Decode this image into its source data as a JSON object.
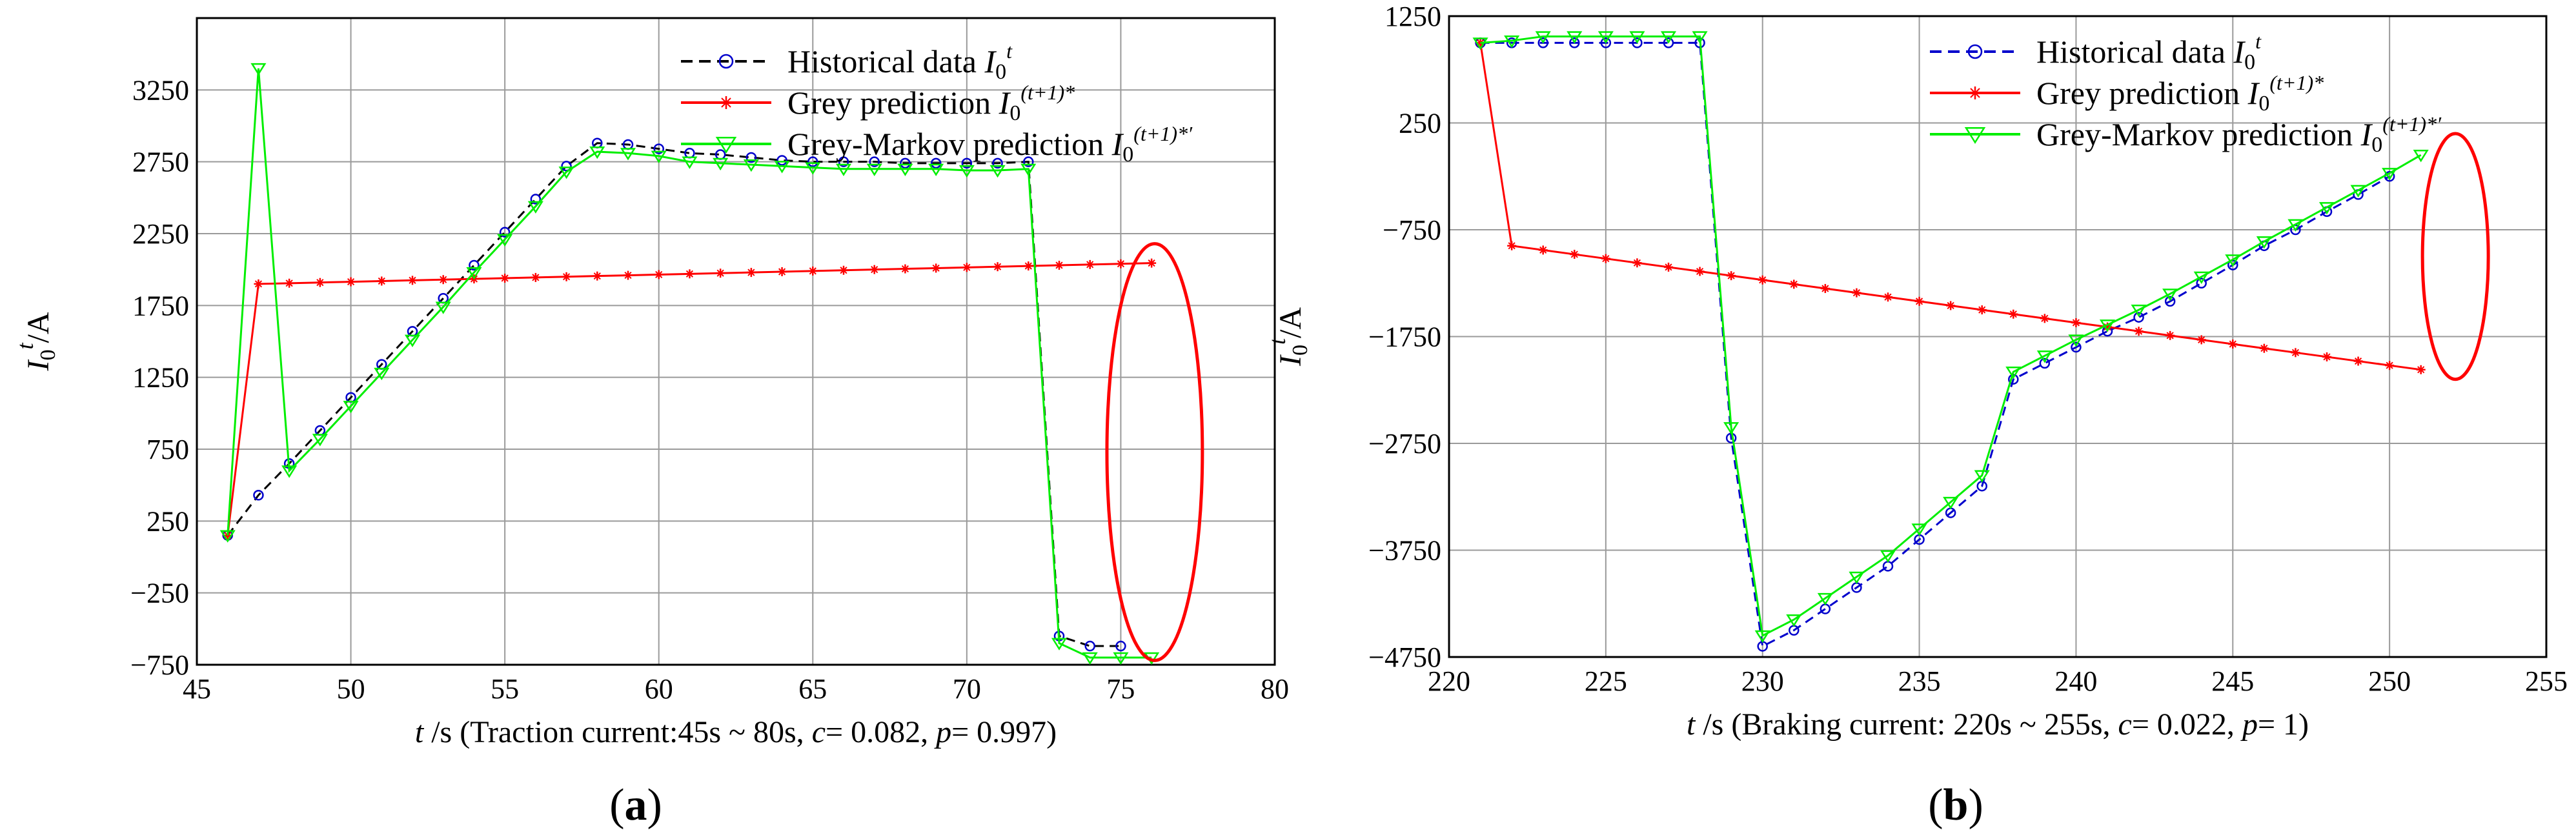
{
  "chart_data": [
    {
      "type": "line",
      "panel_label": "(a)",
      "panel_letter": "a",
      "xlabel": {
        "var": "t",
        "unit": " /s  (Traction current:45s ~ 80s, ",
        "c": "c",
        "c_val": "= 0.082, ",
        "p": "p",
        "p_val": "= 0.997)"
      },
      "ylabel": {
        "base": "I",
        "sub": "0",
        "sup": "t",
        "unit": "/A"
      },
      "xlim": [
        45,
        80
      ],
      "ylim": [
        -750,
        3750
      ],
      "x_ticks": [
        45,
        50,
        55,
        60,
        65,
        70,
        75,
        80
      ],
      "x_tick_labels": [
        "45",
        "50",
        "55",
        "60",
        "65",
        "70",
        "75",
        "80"
      ],
      "y_ticks": [
        -750,
        -250,
        250,
        750,
        1250,
        1750,
        2250,
        2750,
        3250
      ],
      "y_tick_labels": [
        "−750",
        "−250",
        "250",
        "750",
        "1250",
        "1750",
        "2250",
        "2750",
        "3250"
      ],
      "grid": true,
      "legend_location": "top-right",
      "series": [
        {
          "name": "Historical data",
          "symbol": "I",
          "sub": "0",
          "sup": "t",
          "color": "#000000",
          "marker_color": "#0000cc",
          "marker": "circle",
          "dash": true,
          "x": [
            46,
            47,
            48,
            49,
            50,
            51,
            52,
            53,
            54,
            55,
            56,
            57,
            58,
            59,
            60,
            61,
            62,
            63,
            64,
            65,
            66,
            67,
            68,
            69,
            70,
            71,
            72,
            73,
            74,
            75
          ],
          "y": [
            150,
            430,
            650,
            880,
            1110,
            1340,
            1570,
            1800,
            2030,
            2260,
            2490,
            2720,
            2880,
            2870,
            2840,
            2810,
            2800,
            2780,
            2760,
            2750,
            2750,
            2750,
            2740,
            2740,
            2740,
            2740,
            2750,
            -550,
            -620,
            -620
          ]
        },
        {
          "name": "Grey prediction",
          "symbol": "I",
          "sub": "0",
          "sup": "(t+1)*",
          "color": "#ff0000",
          "marker_color": "#ff0000",
          "marker": "star",
          "dash": false,
          "x": [
            46,
            47,
            48,
            49,
            50,
            51,
            52,
            53,
            54,
            55,
            56,
            57,
            58,
            59,
            60,
            61,
            62,
            63,
            64,
            65,
            66,
            67,
            68,
            69,
            70,
            71,
            72,
            73,
            74,
            75,
            76
          ],
          "y": [
            150,
            1900,
            1905,
            1910,
            1915,
            1920,
            1925,
            1930,
            1935,
            1940,
            1945,
            1950,
            1955,
            1960,
            1965,
            1970,
            1975,
            1980,
            1985,
            1990,
            1995,
            2000,
            2005,
            2010,
            2015,
            2020,
            2025,
            2030,
            2035,
            2040,
            2045
          ]
        },
        {
          "name": "Grey-Markov prediction",
          "symbol": "I",
          "sub": "0",
          "sup": "(t+1)*′",
          "color": "#00ee00",
          "marker_color": "#00ee00",
          "marker": "triangle",
          "dash": false,
          "x": [
            46,
            47,
            48,
            49,
            50,
            51,
            52,
            53,
            54,
            55,
            56,
            57,
            58,
            59,
            60,
            61,
            62,
            63,
            64,
            65,
            66,
            67,
            68,
            69,
            70,
            71,
            72,
            73,
            74,
            75,
            76
          ],
          "y": [
            150,
            3400,
            600,
            820,
            1050,
            1280,
            1510,
            1740,
            1980,
            2210,
            2440,
            2680,
            2820,
            2810,
            2790,
            2750,
            2740,
            2730,
            2720,
            2710,
            2700,
            2700,
            2700,
            2700,
            2690,
            2690,
            2700,
            -600,
            -700,
            -700,
            -700
          ]
        }
      ],
      "annotation": {
        "type": "ellipse",
        "color": "#ff0000",
        "center": [
          76.1,
          730
        ],
        "radius_x": 1.55,
        "radius_y": 1450
      }
    },
    {
      "type": "line",
      "panel_label": "(b)",
      "panel_letter": "b",
      "xlabel": {
        "var": "t",
        "unit": " /s (Braking current: 220s ~ 255s, ",
        "c": "c",
        "c_val": "= 0.022, ",
        "p": "p",
        "p_val": "= 1)"
      },
      "ylabel": {
        "base": "I",
        "sub": "0",
        "sup": "t",
        "unit": "/A"
      },
      "xlim": [
        220,
        255
      ],
      "ylim": [
        -4750,
        1250
      ],
      "x_ticks": [
        220,
        225,
        230,
        235,
        240,
        245,
        250,
        255
      ],
      "x_tick_labels": [
        "220",
        "225",
        "230",
        "235",
        "240",
        "245",
        "250",
        "255"
      ],
      "y_ticks": [
        -4750,
        -3750,
        -2750,
        -1750,
        -750,
        250,
        1250
      ],
      "y_tick_labels": [
        "−4750",
        "−3750",
        "−2750",
        "−1750",
        "−750",
        "250",
        "1250"
      ],
      "grid": true,
      "legend_location": "top-right",
      "series": [
        {
          "name": "Historical data",
          "symbol": "I",
          "sub": "0",
          "sup": "t",
          "color": "#0000cc",
          "marker_color": "#0000cc",
          "marker": "circle",
          "dash": true,
          "x": [
            221,
            222,
            223,
            224,
            225,
            226,
            227,
            228,
            229,
            230,
            231,
            232,
            233,
            234,
            235,
            236,
            237,
            238,
            239,
            240,
            241,
            242,
            243,
            244,
            245,
            246,
            247,
            248,
            249,
            250
          ],
          "y": [
            1000,
            1000,
            1000,
            1000,
            1000,
            1000,
            1000,
            1000,
            -2700,
            -4650,
            -4500,
            -4300,
            -4100,
            -3900,
            -3650,
            -3400,
            -3150,
            -2150,
            -2000,
            -1850,
            -1700,
            -1570,
            -1420,
            -1250,
            -1080,
            -900,
            -750,
            -580,
            -420,
            -250
          ]
        },
        {
          "name": "Grey prediction",
          "symbol": "I",
          "sub": "0",
          "sup": "(t+1)*",
          "color": "#ff0000",
          "marker_color": "#ff0000",
          "marker": "star",
          "dash": false,
          "x": [
            221,
            222,
            223,
            224,
            225,
            226,
            227,
            228,
            229,
            230,
            231,
            232,
            233,
            234,
            235,
            236,
            237,
            238,
            239,
            240,
            241,
            242,
            243,
            244,
            245,
            246,
            247,
            248,
            249,
            250,
            251
          ],
          "y": [
            1000,
            -900,
            -940,
            -980,
            -1020,
            -1060,
            -1100,
            -1140,
            -1180,
            -1220,
            -1260,
            -1300,
            -1340,
            -1380,
            -1420,
            -1460,
            -1500,
            -1540,
            -1580,
            -1620,
            -1660,
            -1700,
            -1740,
            -1780,
            -1820,
            -1860,
            -1900,
            -1940,
            -1980,
            -2020,
            -2060
          ]
        },
        {
          "name": "Grey-Markov prediction",
          "symbol": "I",
          "sub": "0",
          "sup": "(t+1)*′",
          "color": "#00ee00",
          "marker_color": "#00ee00",
          "marker": "triangle",
          "dash": false,
          "x": [
            221,
            222,
            223,
            224,
            225,
            226,
            227,
            228,
            229,
            230,
            231,
            232,
            233,
            234,
            235,
            236,
            237,
            238,
            239,
            240,
            241,
            242,
            243,
            244,
            245,
            246,
            247,
            248,
            249,
            250,
            251
          ],
          "y": [
            1000,
            1020,
            1060,
            1060,
            1060,
            1060,
            1060,
            1060,
            -2600,
            -4550,
            -4400,
            -4200,
            -4000,
            -3800,
            -3550,
            -3300,
            -3050,
            -2080,
            -1930,
            -1780,
            -1640,
            -1500,
            -1350,
            -1190,
            -1030,
            -860,
            -700,
            -540,
            -380,
            -220,
            -50
          ]
        }
      ],
      "annotation": {
        "type": "ellipse",
        "color": "#ff0000",
        "center": [
          252.1,
          -1000
        ],
        "radius_x": 1.05,
        "radius_y": 1150
      }
    }
  ]
}
